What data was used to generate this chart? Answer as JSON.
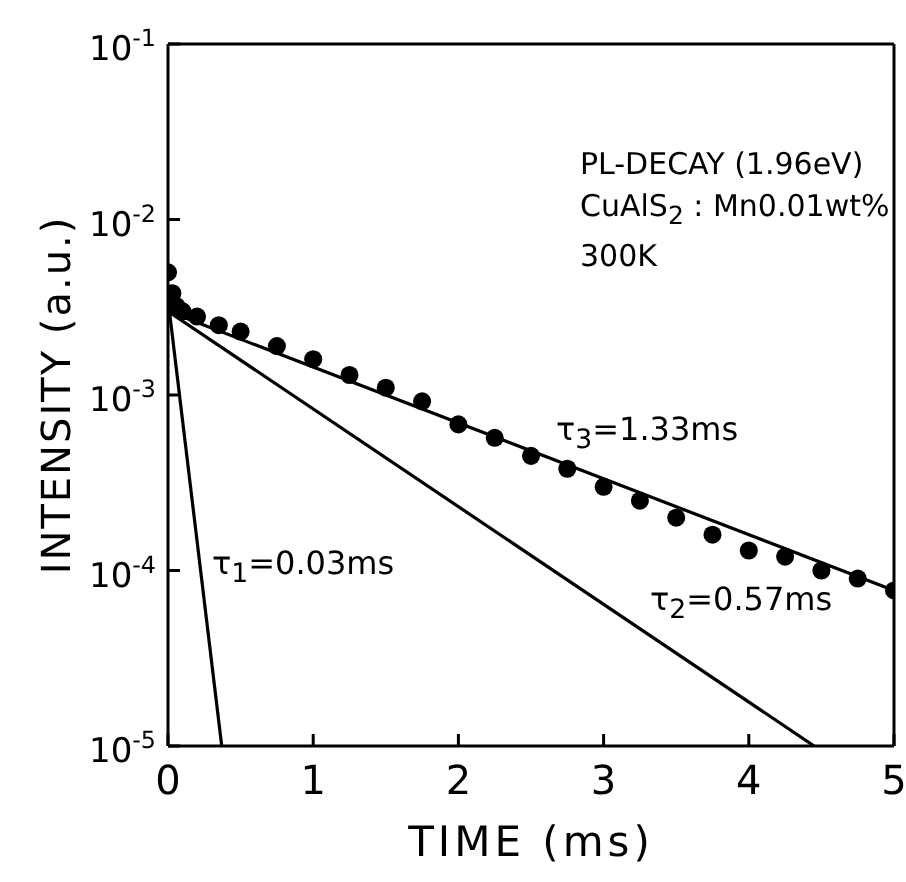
{
  "chart_data": {
    "type": "line",
    "xlabel": "TIME (ms)",
    "ylabel": "INTENSITY (a.u.)",
    "log": "y",
    "xlim": [
      0,
      5
    ],
    "xticks": [
      0,
      1,
      2,
      3,
      4,
      5
    ],
    "ylim": [
      1e-05,
      0.1
    ],
    "yticks": [
      {
        "value": 0.1,
        "label": "10$^{-1}$"
      },
      {
        "value": 0.01,
        "label": "10$^{-2}$"
      },
      {
        "value": 0.001,
        "label": "10$^{-3}$"
      },
      {
        "value": 0.0001,
        "label": "10$^{-4}$"
      },
      {
        "value": 1e-05,
        "label": "10$^{-5}$"
      }
    ],
    "series": [
      {
        "type": "scatter",
        "color": "#000000",
        "marker": "circle",
        "x": [
          0,
          0.03,
          0.06,
          0.1,
          0.2,
          0.35,
          0.5,
          0.75,
          1,
          1.25,
          1.5,
          1.75,
          2,
          2.25,
          2.5,
          2.75,
          3,
          3.25,
          3.5,
          3.75,
          4,
          4.25,
          4.5,
          4.75,
          5
        ],
        "values": [
          0.005,
          0.0038,
          0.0032,
          0.003,
          0.0028,
          0.0025,
          0.0023,
          0.0019,
          0.0016,
          0.0013,
          0.0011,
          0.00092,
          0.00068,
          0.00057,
          0.00045,
          0.00038,
          0.0003,
          0.00025,
          0.0002,
          0.00016,
          0.00013,
          0.00012,
          0.0001,
          9e-05,
          7.7e-05
        ]
      },
      {
        "color": "#000000",
        "x": [
          0,
          5
        ],
        "values": [
          0.003,
          7.7e-05
        ]
      },
      {
        "color": "#000000",
        "x": [
          0,
          4.45
        ],
        "values": [
          0.003,
          1e-05
        ]
      },
      {
        "color": "#000000",
        "x": [
          0,
          0.37
        ],
        "values": [
          0.0035,
          1e-05
        ]
      }
    ],
    "annotations": [
      "PL-DECAY (1.96eV)",
      "CuAlS$_{2}$ : Mn0.01wt%",
      "300K",
      "τ$_{3}$=1.33ms",
      "τ$_{2}$=0.57ms",
      "τ$_{1}$=0.03ms"
    ]
  }
}
